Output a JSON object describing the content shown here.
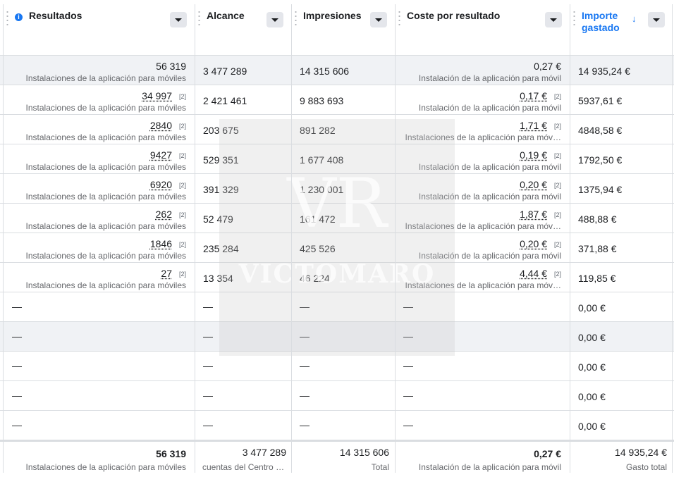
{
  "headers": {
    "results": "Resultados",
    "reach": "Alcance",
    "impressions": "Impresiones",
    "cost": "Coste por resultado",
    "spent_line1": "Importe",
    "spent_line2": "gastado",
    "info_glyph": "i",
    "sort_glyph": "↓"
  },
  "rows": [
    {
      "results": "56 319",
      "results_note": "",
      "results_sub": "Instalaciones de la aplicación para móviles",
      "reach": "3 477 289",
      "impressions": "14 315 606",
      "cost": "0,27 €",
      "cost_note": "",
      "cost_sub": "Instalación de la aplicación para móvil",
      "spent": "14 935,24 €"
    },
    {
      "results": "34 997",
      "results_note": "[2]",
      "results_sub": "Instalaciones de la aplicación para móviles",
      "reach": "2 421 461",
      "impressions": "9 883 693",
      "cost": "0,17 €",
      "cost_note": "[2]",
      "cost_sub": "Instalación de la aplicación para móvil",
      "spent": "5937,61 €"
    },
    {
      "results": "2840",
      "results_note": "[2]",
      "results_sub": "Instalaciones de la aplicación para móviles",
      "reach": "203 675",
      "impressions": "891 282",
      "cost": "1,71 €",
      "cost_note": "[2]",
      "cost_sub": "Instalaciones de la aplicación para móv…",
      "spent": "4848,58 €"
    },
    {
      "results": "9427",
      "results_note": "[2]",
      "results_sub": "Instalaciones de la aplicación para móviles",
      "reach": "529 351",
      "impressions": "1 677 408",
      "cost": "0,19 €",
      "cost_note": "[2]",
      "cost_sub": "Instalación de la aplicación para móvil",
      "spent": "1792,50 €"
    },
    {
      "results": "6920",
      "results_note": "[2]",
      "results_sub": "Instalaciones de la aplicación para móviles",
      "reach": "391 329",
      "impressions": "1 230 001",
      "cost": "0,20 €",
      "cost_note": "[2]",
      "cost_sub": "Instalación de la aplicación para móvil",
      "spent": "1375,94 €"
    },
    {
      "results": "262",
      "results_note": "[2]",
      "results_sub": "Instalaciones de la aplicación para móviles",
      "reach": "52 479",
      "impressions": "161 472",
      "cost": "1,87 €",
      "cost_note": "[2]",
      "cost_sub": "Instalaciones de la aplicación para móv…",
      "spent": "488,88 €"
    },
    {
      "results": "1846",
      "results_note": "[2]",
      "results_sub": "Instalaciones de la aplicación para móviles",
      "reach": "235 284",
      "impressions": "425 526",
      "cost": "0,20 €",
      "cost_note": "[2]",
      "cost_sub": "Instalación de la aplicación para móvil",
      "spent": "371,88 €"
    },
    {
      "results": "27",
      "results_note": "[2]",
      "results_sub": "Instalaciones de la aplicación para móviles",
      "reach": "13 354",
      "impressions": "46 224",
      "cost": "4,44 €",
      "cost_note": "[2]",
      "cost_sub": "Instalaciones de la aplicación para móv…",
      "spent": "119,85 €"
    }
  ],
  "empty_rows": [
    {
      "dash": "—",
      "spent": "0,00 €"
    },
    {
      "dash": "—",
      "spent": "0,00 €"
    },
    {
      "dash": "—",
      "spent": "0,00 €"
    },
    {
      "dash": "—",
      "spent": "0,00 €"
    },
    {
      "dash": "—",
      "spent": "0,00 €"
    }
  ],
  "totals": {
    "results": "56 319",
    "results_sub": "Instalaciones de la aplicación para móviles",
    "reach": "3 477 289",
    "reach_sub": "cuentas del Centro …",
    "impressions": "14 315 606",
    "impressions_sub": "Total",
    "cost": "0,27 €",
    "cost_sub": "Instalación de la aplicación para móvil",
    "spent": "14 935,24 €",
    "spent_sub": "Gasto total"
  },
  "watermark": {
    "monogram": "VR",
    "text": "VICTOMARO"
  },
  "colors": {
    "accent": "#1877f2",
    "highlight_row": "#f0f2f5",
    "border": "#dadde1",
    "muted": "#65676b"
  }
}
